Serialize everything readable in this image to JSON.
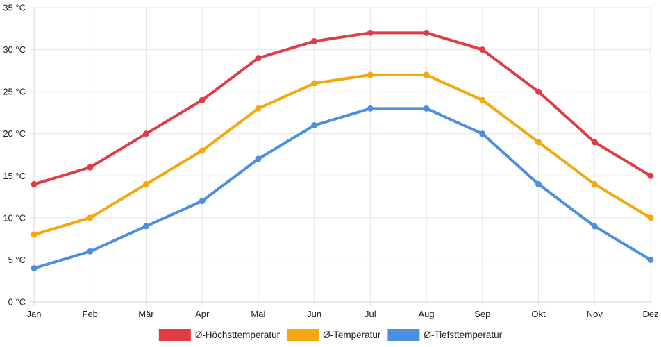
{
  "chart_data": {
    "type": "line",
    "title": "",
    "xlabel": "",
    "ylabel": "",
    "categories": [
      "Jan",
      "Feb",
      "Mär",
      "Apr",
      "Mai",
      "Jun",
      "Jul",
      "Aug",
      "Sep",
      "Okt",
      "Nov",
      "Dez"
    ],
    "ylim": [
      0,
      35
    ],
    "yticks": [
      0,
      5,
      10,
      15,
      20,
      25,
      30,
      35
    ],
    "yunit": " °C",
    "grid": true,
    "legend_position": "bottom",
    "series": [
      {
        "name": "Ø-Höchsttemperatur",
        "color": "#e03c46",
        "values": [
          14,
          16,
          20,
          24,
          29,
          31,
          32,
          32,
          30,
          25,
          19,
          15
        ]
      },
      {
        "name": "Ø-Temperatur",
        "color": "#f5a80d",
        "values": [
          8,
          10,
          14,
          18,
          23,
          26,
          27,
          27,
          24,
          19,
          14,
          10
        ]
      },
      {
        "name": "Ø-Tiefsttemperatur",
        "color": "#4a8fe0",
        "values": [
          4,
          6,
          9,
          12,
          17,
          21,
          23,
          23,
          20,
          14,
          9,
          5
        ]
      }
    ]
  }
}
